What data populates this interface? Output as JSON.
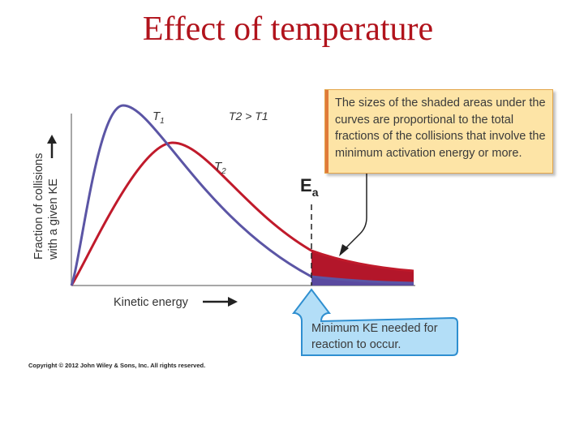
{
  "title": "Effect of temperature",
  "diagram": {
    "curve_label_t1": "T",
    "curve_label_t1_sub": "1",
    "curve_label_t2": "T",
    "curve_label_t2_sub": "2",
    "inequality_text": "T2 > T1",
    "ylabel_line1": "Fraction of collisions",
    "ylabel_line2": "with a given KE",
    "xlabel": "Kinetic energy",
    "ea_main": "E",
    "ea_sub": "a",
    "callout_top": "The sizes of the shaded areas under the curves are proportional to the total fractions of the collisions that involve the minimum activation energy or more.",
    "callout_bottom": "Minimum KE needed for reaction to occur.",
    "copyright": "Copyright © 2012 John Wiley & Sons, Inc. All rights reserved.",
    "colors": {
      "title": "#b1131c",
      "curve_t1": "#5b55a5",
      "curve_t2": "#c01a2b",
      "shade_t2": "#b3162a",
      "shade_t1": "#5a4aa0",
      "callout_top_bg": "#fde4a6",
      "callout_bottom_bg": "#b3def7"
    }
  }
}
